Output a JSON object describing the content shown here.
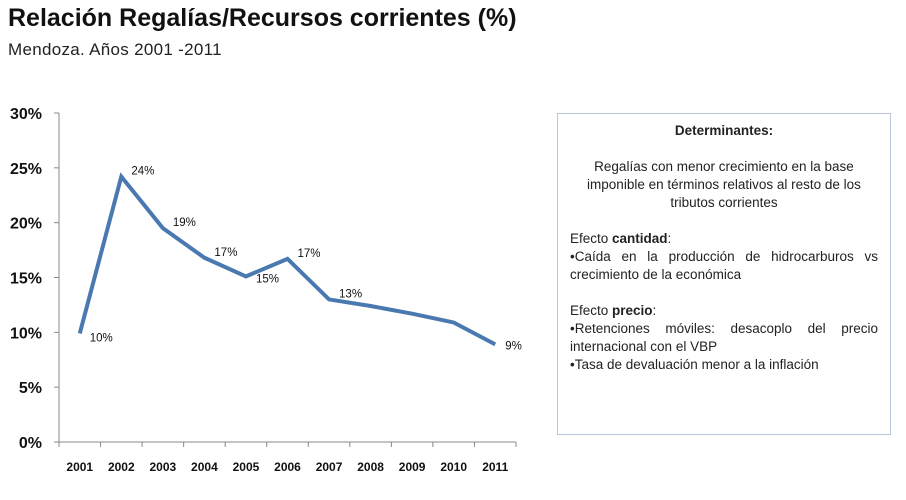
{
  "title": "Relación Regalías/Recursos corrientes (%)",
  "subtitle": "Mendoza.  Años 2001 -2011",
  "chart_data": {
    "type": "line",
    "categories": [
      "2001",
      "2002",
      "2003",
      "2004",
      "2005",
      "2006",
      "2007",
      "2008",
      "2009",
      "2010",
      "2011"
    ],
    "values": [
      9.9,
      24.2,
      19.5,
      16.8,
      15.1,
      16.7,
      13.0,
      12.4,
      11.7,
      10.9,
      8.9
    ],
    "data_labels": [
      "10%",
      "24%",
      "19%",
      "17%",
      "15%",
      "17%",
      "13%",
      "",
      "",
      "",
      "9%"
    ],
    "yticks": [
      "0%",
      "5%",
      "10%",
      "15%",
      "20%",
      "25%",
      "30%"
    ],
    "ylim": [
      0,
      30
    ],
    "grid": false,
    "line_color": "#4a78b0"
  },
  "box": {
    "heading": "Determinantes:",
    "summary": "Regalías con menor crecimiento en la base imponible en términos relativos al resto de los tributos corrientes",
    "cantidad_prefix": "Efecto ",
    "cantidad_bold": "cantidad",
    "cantidad_suffix": ":",
    "cantidad_items": [
      "•Caída en la producción de hidrocarburos vs crecimiento de la económica"
    ],
    "precio_prefix": "Efecto ",
    "precio_bold": "precio",
    "precio_suffix": ":",
    "precio_items": [
      "•Retenciones móviles: desacoplo del precio internacional con el VBP",
      "•Tasa de devaluación menor a la inflación"
    ]
  }
}
